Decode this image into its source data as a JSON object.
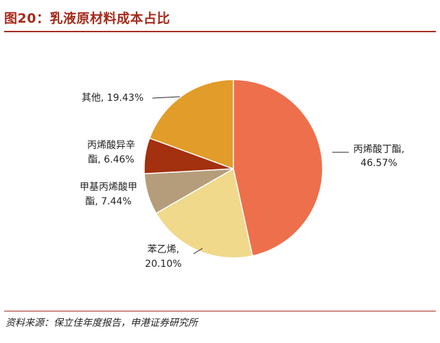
{
  "figure": {
    "title": "图20：乳液原材料成本占比",
    "source": "资料来源：保立佳年度报告，申港证券研究所"
  },
  "chart_data": {
    "type": "pie",
    "title": "",
    "slices": [
      {
        "label_lines": [
          "丙烯酸丁酯,",
          "46.57%"
        ],
        "name": "丙烯酸丁酯",
        "value": 46.57,
        "color": "#ee6f4b"
      },
      {
        "label_lines": [
          "苯乙烯,",
          "20.10%"
        ],
        "name": "苯乙烯",
        "value": 20.1,
        "color": "#f0d98b"
      },
      {
        "label_lines": [
          "甲基丙烯酸甲",
          "酯, 7.44%"
        ],
        "name": "甲基丙烯酸甲酯",
        "value": 7.44,
        "color": "#b59d7c"
      },
      {
        "label_lines": [
          "丙烯酸异辛",
          "酯, 6.46%"
        ],
        "name": "丙烯酸异辛酯",
        "value": 6.46,
        "color": "#a3300f"
      },
      {
        "label_lines": [
          "其他, 19.43%"
        ],
        "name": "其他",
        "value": 19.43,
        "color": "#e29c29"
      }
    ],
    "start": "12 o'clock",
    "direction": "clockwise",
    "legend": "none"
  }
}
